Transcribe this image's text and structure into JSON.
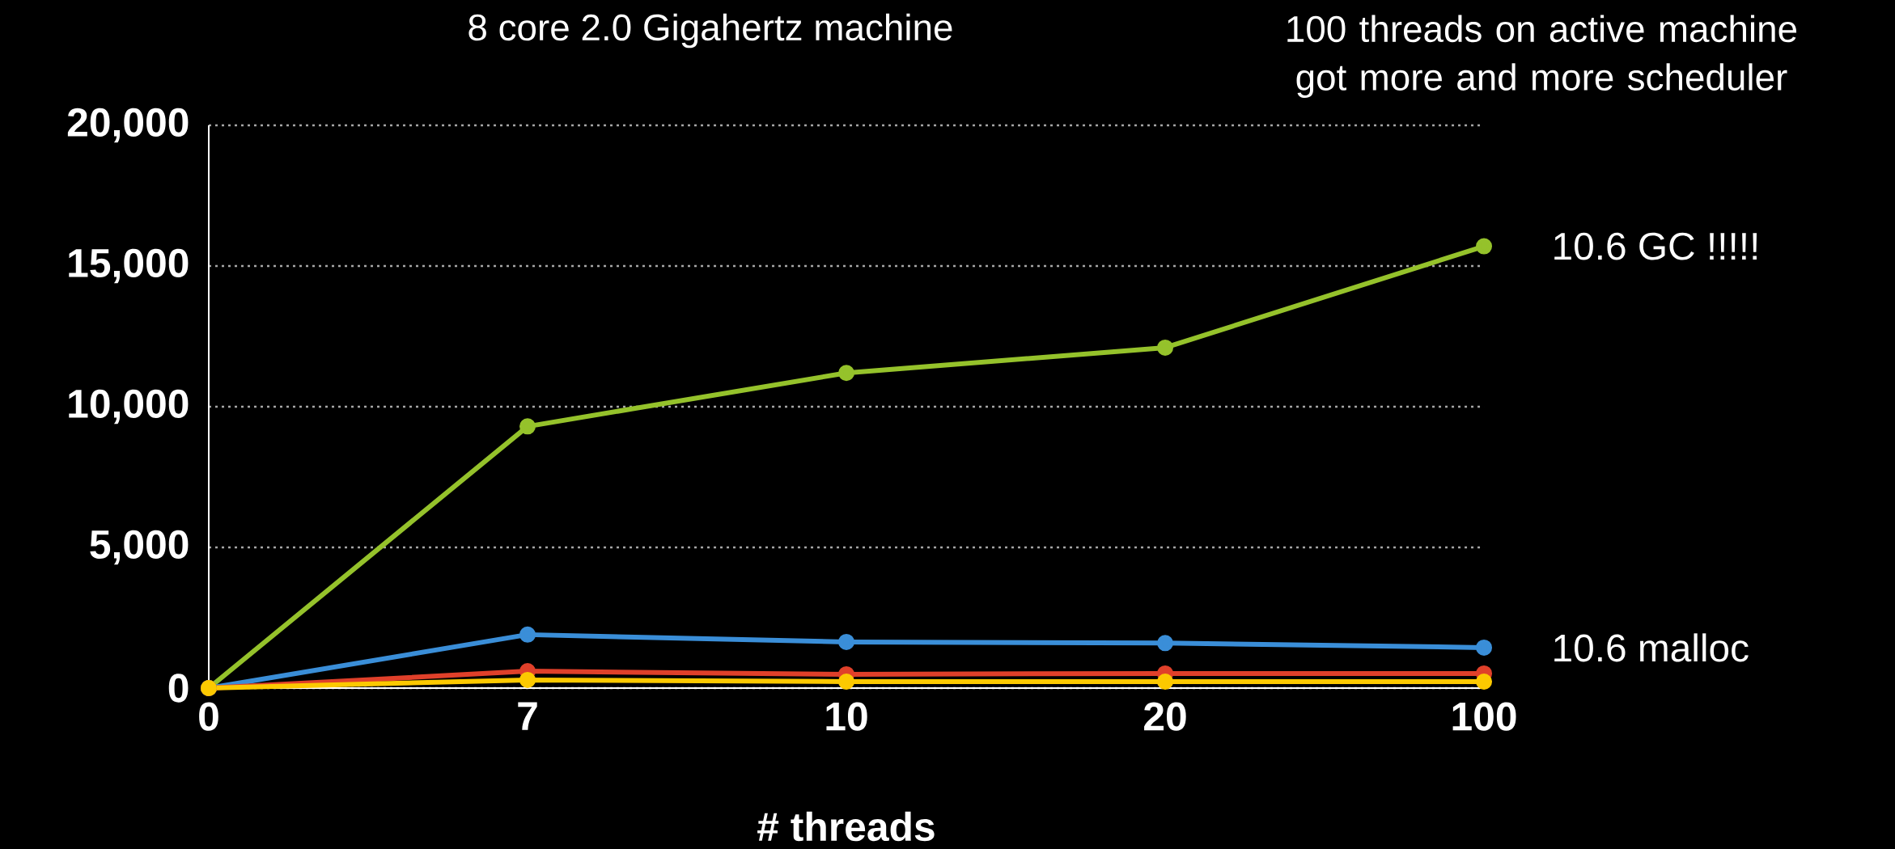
{
  "chart_data": {
    "type": "line",
    "title": "8 core 2.0 Gigahertz machine",
    "xlabel": "# threads",
    "annotations": [
      "100 threads on active machine got more and more scheduler"
    ],
    "categories": [
      "0",
      "7",
      "10",
      "20",
      "100"
    ],
    "series": [
      {
        "name": "10.6 GC !!!!!",
        "color": "#95c22b",
        "values": [
          0,
          9300,
          11200,
          12100,
          15700
        ]
      },
      {
        "name": "10.6 malloc",
        "color": "#3a8ed8",
        "values": [
          0,
          1900,
          1640,
          1600,
          1440
        ]
      },
      {
        "color": "#e0402a",
        "values": [
          0,
          600,
          490,
          520,
          520
        ]
      },
      {
        "color": "#fcc900",
        "values": [
          0,
          290,
          230,
          230,
          230
        ]
      }
    ],
    "ylim": [
      0,
      20000
    ],
    "yticks": [
      {
        "value": 0,
        "label": "0"
      },
      {
        "value": 5000,
        "label": "5,000"
      },
      {
        "value": 10000,
        "label": "10,000"
      },
      {
        "value": 15000,
        "label": "15,000"
      },
      {
        "value": 20000,
        "label": "20,000"
      }
    ],
    "grid": "y",
    "legend": false,
    "marker": "circle",
    "line_style": "solid"
  }
}
